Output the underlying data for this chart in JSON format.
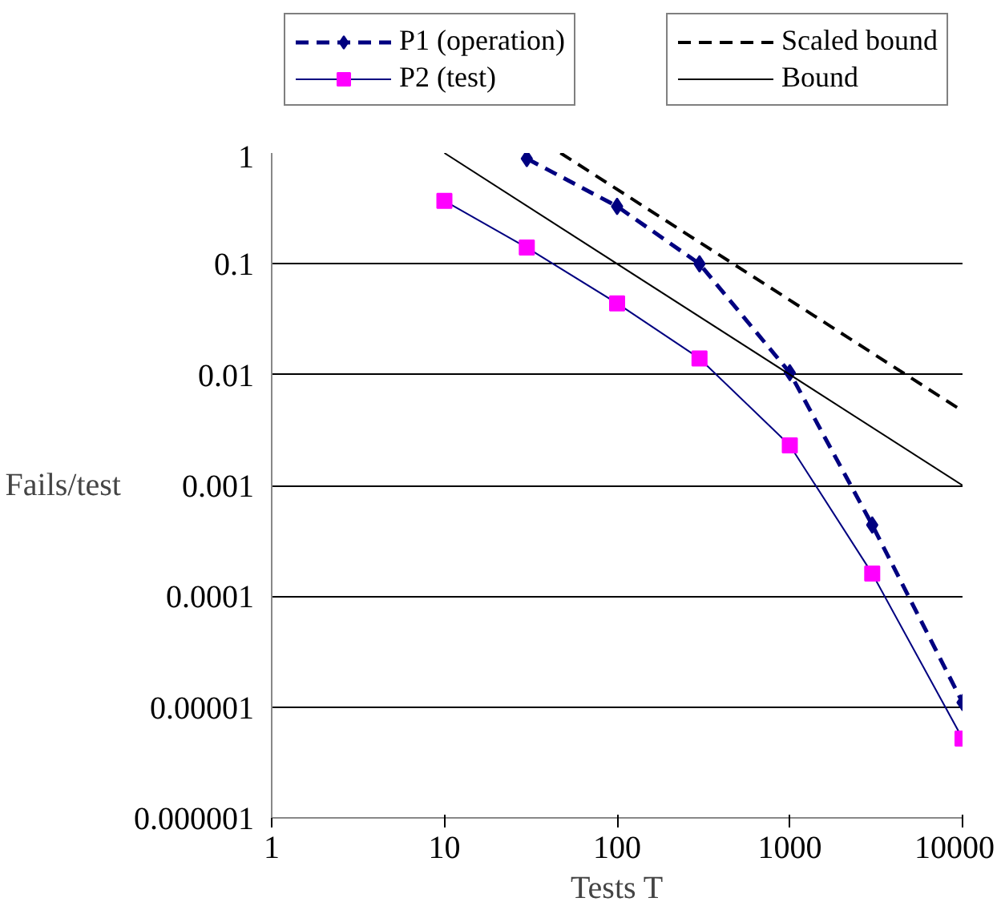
{
  "chart_data": {
    "type": "line",
    "xlabel": "Tests T",
    "ylabel": "Fails/test",
    "log": "xy",
    "grid": "y",
    "legend": "top",
    "xlim": [
      1,
      10000
    ],
    "xticks": [
      1,
      10,
      100,
      1000,
      10000
    ],
    "ylim": [
      1e-06,
      1
    ],
    "yticks": [
      {
        "value": 1,
        "label": "1"
      },
      {
        "value": 0.1,
        "label": "0.1"
      },
      {
        "value": 0.01,
        "label": "0.01"
      },
      {
        "value": 0.001,
        "label": "0.001"
      },
      {
        "value": 0.0001,
        "label": "0.0001"
      },
      {
        "value": 1e-05,
        "label": "0.00001"
      },
      {
        "value": 1e-06,
        "label": "0.000001"
      }
    ],
    "series": [
      {
        "name": "P1 (operation)",
        "color": "#000080",
        "marker": "diamond",
        "line_style": "dashed",
        "x": [
          30,
          100,
          300,
          1000,
          3000,
          10000
        ],
        "values": [
          0.89,
          0.33,
          0.1,
          0.0104,
          0.00044,
          1.1e-05
        ]
      },
      {
        "name": "P2 (test)",
        "color": "#000080",
        "marker": "square",
        "line_style": "solid",
        "x": [
          10,
          30,
          100,
          300,
          1000,
          3000,
          10000
        ],
        "values": [
          0.37,
          0.14,
          0.044,
          0.014,
          0.0023,
          0.00016,
          5.2e-06
        ]
      },
      {
        "name": "Scaled bound",
        "color": "#000000",
        "marker": "none",
        "line_style": "dashed",
        "x": [
          47,
          10000
        ],
        "values": [
          1,
          0.0047
        ]
      },
      {
        "name": "Bound",
        "color": "#000000",
        "marker": "none",
        "line_style": "solid",
        "x": [
          10,
          10000
        ],
        "values": [
          1,
          0.001
        ]
      }
    ]
  }
}
